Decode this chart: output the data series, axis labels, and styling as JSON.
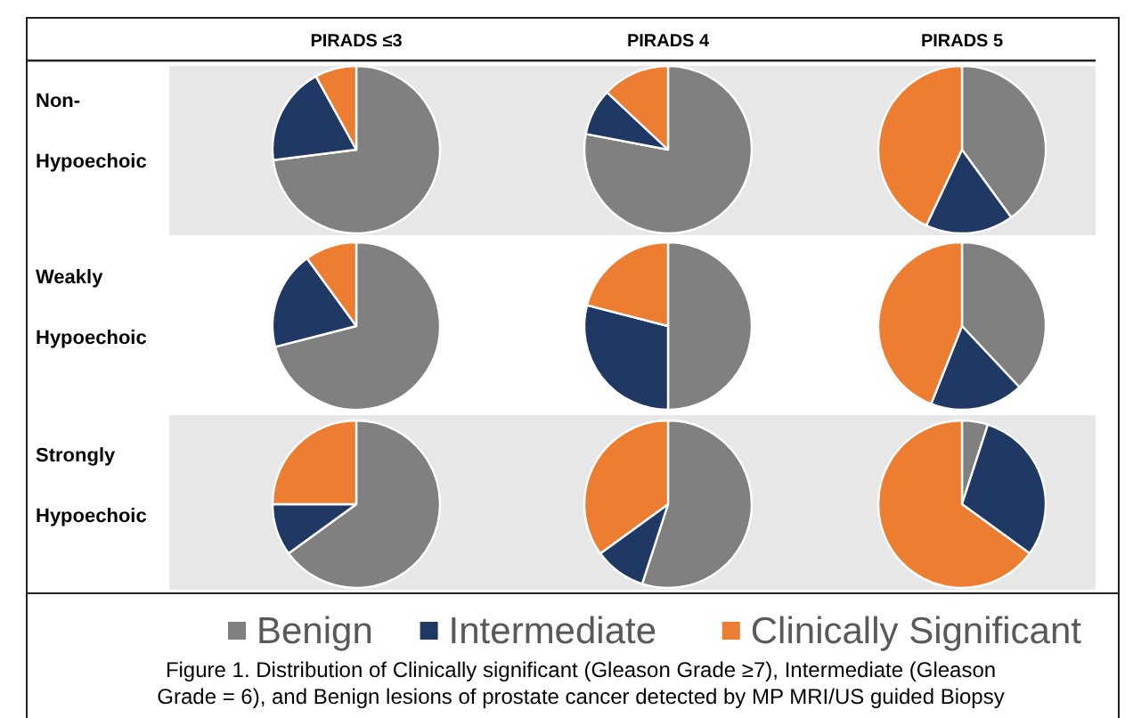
{
  "chart_data": [
    {
      "type": "pie",
      "title": "PIRADS ≤3",
      "ylabel": "Non- Hypoechoic",
      "legend": "bottom",
      "categories": [
        "Benign",
        "Intermediate",
        "Clinically Significant"
      ],
      "values": [
        73,
        19,
        8
      ],
      "colors": [
        "#808080",
        "#1f3864",
        "#ed7d31"
      ]
    },
    {
      "type": "pie",
      "title": "PIRADS 4",
      "categories": [
        null,
        null,
        null
      ],
      "values": [
        78,
        9,
        13
      ],
      "colors": [
        "#808080",
        "#1f3864",
        "#ed7d31"
      ]
    },
    {
      "type": "pie",
      "title": "PIRADS 5",
      "categories": [
        null,
        null,
        null
      ],
      "values": [
        40,
        17,
        43
      ],
      "colors": [
        "#808080",
        "#1f3864",
        "#ed7d31"
      ]
    },
    {
      "type": "pie",
      "ylabel": "Weakly Hypoechoic",
      "categories": [
        null,
        null,
        null
      ],
      "values": [
        71,
        19,
        10
      ],
      "colors": [
        "#808080",
        "#1f3864",
        "#ed7d31"
      ]
    },
    {
      "type": "pie",
      "categories": [
        null,
        null,
        null
      ],
      "values": [
        50,
        29,
        21
      ],
      "colors": [
        "#808080",
        "#1f3864",
        "#ed7d31"
      ]
    },
    {
      "type": "pie",
      "categories": [
        null,
        null,
        null
      ],
      "values": [
        38,
        18,
        44
      ],
      "colors": [
        "#808080",
        "#1f3864",
        "#ed7d31"
      ]
    },
    {
      "type": "pie",
      "ylabel": "Strongly Hypoechoic",
      "categories": [
        null,
        null,
        null
      ],
      "values": [
        65,
        10,
        25
      ],
      "colors": [
        "#808080",
        "#1f3864",
        "#ed7d31"
      ]
    },
    {
      "type": "pie",
      "annotations": [
        "Figure 1. Distribution of Clinically significant (Gleason Grade ≥7), Intermediate (Gleason Grade = 6), and Benign lesions of prostate cancer detected by MP MRI/US guided Biopsy"
      ],
      "categories": [
        null,
        null,
        null
      ],
      "values": [
        55,
        10,
        35
      ],
      "colors": [
        "#808080",
        "#1f3864",
        "#ed7d31"
      ]
    },
    {
      "type": "pie",
      "categories": [
        null,
        null,
        null
      ],
      "values": [
        5,
        30,
        65
      ],
      "colors": [
        "#808080",
        "#1f3864",
        "#ed7d31"
      ]
    }
  ]
}
